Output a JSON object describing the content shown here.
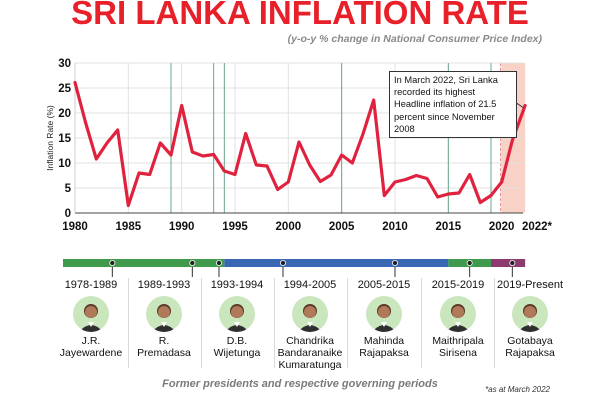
{
  "chart_data": {
    "type": "line",
    "title": "SRI LANKA INFLATION RATE",
    "subtitle": "(y-o-y % change in National Consumer Price Index)",
    "ylabel": "Inflation Rate (%)",
    "xlabel": "",
    "xlim": [
      1980,
      2022
    ],
    "ylim": [
      0,
      30
    ],
    "x_ticks": [
      1980,
      1985,
      1990,
      1995,
      2000,
      2005,
      2010,
      2015,
      2020
    ],
    "x_tick_labels": [
      "1980",
      "1985",
      "1990",
      "1995",
      "2000",
      "2005",
      "2010",
      "2015",
      "2020"
    ],
    "x_end_label": "2022*",
    "y_ticks": [
      0,
      5,
      10,
      15,
      20,
      25,
      30
    ],
    "y_tick_labels": [
      "0",
      "5",
      "10",
      "15",
      "20",
      "25",
      "30"
    ],
    "grid": true,
    "series": [
      {
        "values": [
          {
            "x": 1980,
            "y": 26.1
          },
          {
            "x": 1981,
            "y": 18.0
          },
          {
            "x": 1982,
            "y": 10.8
          },
          {
            "x": 1983,
            "y": 14.0
          },
          {
            "x": 1984,
            "y": 16.6
          },
          {
            "x": 1985,
            "y": 1.5
          },
          {
            "x": 1986,
            "y": 8.0
          },
          {
            "x": 1987,
            "y": 7.7
          },
          {
            "x": 1988,
            "y": 14.0
          },
          {
            "x": 1989,
            "y": 11.6
          },
          {
            "x": 1990,
            "y": 21.5
          },
          {
            "x": 1991,
            "y": 12.2
          },
          {
            "x": 1992,
            "y": 11.4
          },
          {
            "x": 1993,
            "y": 11.7
          },
          {
            "x": 1994,
            "y": 8.4
          },
          {
            "x": 1995,
            "y": 7.7
          },
          {
            "x": 1996,
            "y": 15.9
          },
          {
            "x": 1997,
            "y": 9.6
          },
          {
            "x": 1998,
            "y": 9.4
          },
          {
            "x": 1999,
            "y": 4.7
          },
          {
            "x": 2000,
            "y": 6.2
          },
          {
            "x": 2001,
            "y": 14.2
          },
          {
            "x": 2002,
            "y": 9.6
          },
          {
            "x": 2003,
            "y": 6.3
          },
          {
            "x": 2004,
            "y": 7.6
          },
          {
            "x": 2005,
            "y": 11.6
          },
          {
            "x": 2006,
            "y": 10.0
          },
          {
            "x": 2007,
            "y": 15.8
          },
          {
            "x": 2008,
            "y": 22.6
          },
          {
            "x": 2009,
            "y": 3.5
          },
          {
            "x": 2010,
            "y": 6.2
          },
          {
            "x": 2011,
            "y": 6.7
          },
          {
            "x": 2012,
            "y": 7.5
          },
          {
            "x": 2013,
            "y": 6.9
          },
          {
            "x": 2014,
            "y": 3.2
          },
          {
            "x": 2015,
            "y": 3.8
          },
          {
            "x": 2016,
            "y": 4.0
          },
          {
            "x": 2017,
            "y": 7.7
          },
          {
            "x": 2018,
            "y": 2.1
          },
          {
            "x": 2019,
            "y": 3.5
          },
          {
            "x": 2020,
            "y": 6.2
          },
          {
            "x": 2021,
            "y": 14.5
          },
          {
            "x": 2022.2,
            "y": 21.5
          }
        ]
      }
    ],
    "shaded_range": [
      2019.9,
      2022.2
    ],
    "period_boundaries": [
      1989,
      1993,
      1994,
      2005,
      2015,
      2019
    ],
    "annotation": "In March 2022, Sri Lanka recorded its highest Headline inflation of 21.5 percent since November 2008"
  },
  "timeline": {
    "segments": [
      {
        "start": 1978,
        "end": 1994,
        "color": "#3f9a4e"
      },
      {
        "start": 1994,
        "end": 2015,
        "color": "#3a67b4"
      },
      {
        "start": 2015,
        "end": 2019,
        "color": "#3f9a4e"
      },
      {
        "start": 2019,
        "end": 2022.2,
        "color": "#8c3b6f"
      }
    ],
    "markers": [
      1983.5,
      1991,
      1993.5,
      1999.5,
      2010,
      2017,
      2021
    ]
  },
  "presidents": [
    {
      "period": "1978-1989",
      "name": [
        "J.R.",
        "Jayewardene"
      ]
    },
    {
      "period": "1989-1993",
      "name": [
        "R.",
        "Premadasa"
      ]
    },
    {
      "period": "1993-1994",
      "name": [
        "D.B.",
        "Wijetunga"
      ]
    },
    {
      "period": "1994-2005",
      "name": [
        "Chandrika",
        "Bandaranaike",
        "Kumaratunga"
      ]
    },
    {
      "period": "2005-2015",
      "name": [
        "Mahinda",
        "Rajapaksa"
      ]
    },
    {
      "period": "2015-2019",
      "name": [
        "Maithripala",
        "Sirisena"
      ]
    },
    {
      "period": "2019-Present",
      "name": [
        "Gotabaya",
        "Rajapaksa"
      ]
    }
  ],
  "footer": "Former presidents and respective governing periods",
  "footnote": "*as at March 2022",
  "colors": {
    "title": "#e8202a",
    "line": "#e0223f",
    "shade": "#f8d2c6",
    "period_line": "#6aa889",
    "avatar_bg": "#c9e6bd"
  }
}
